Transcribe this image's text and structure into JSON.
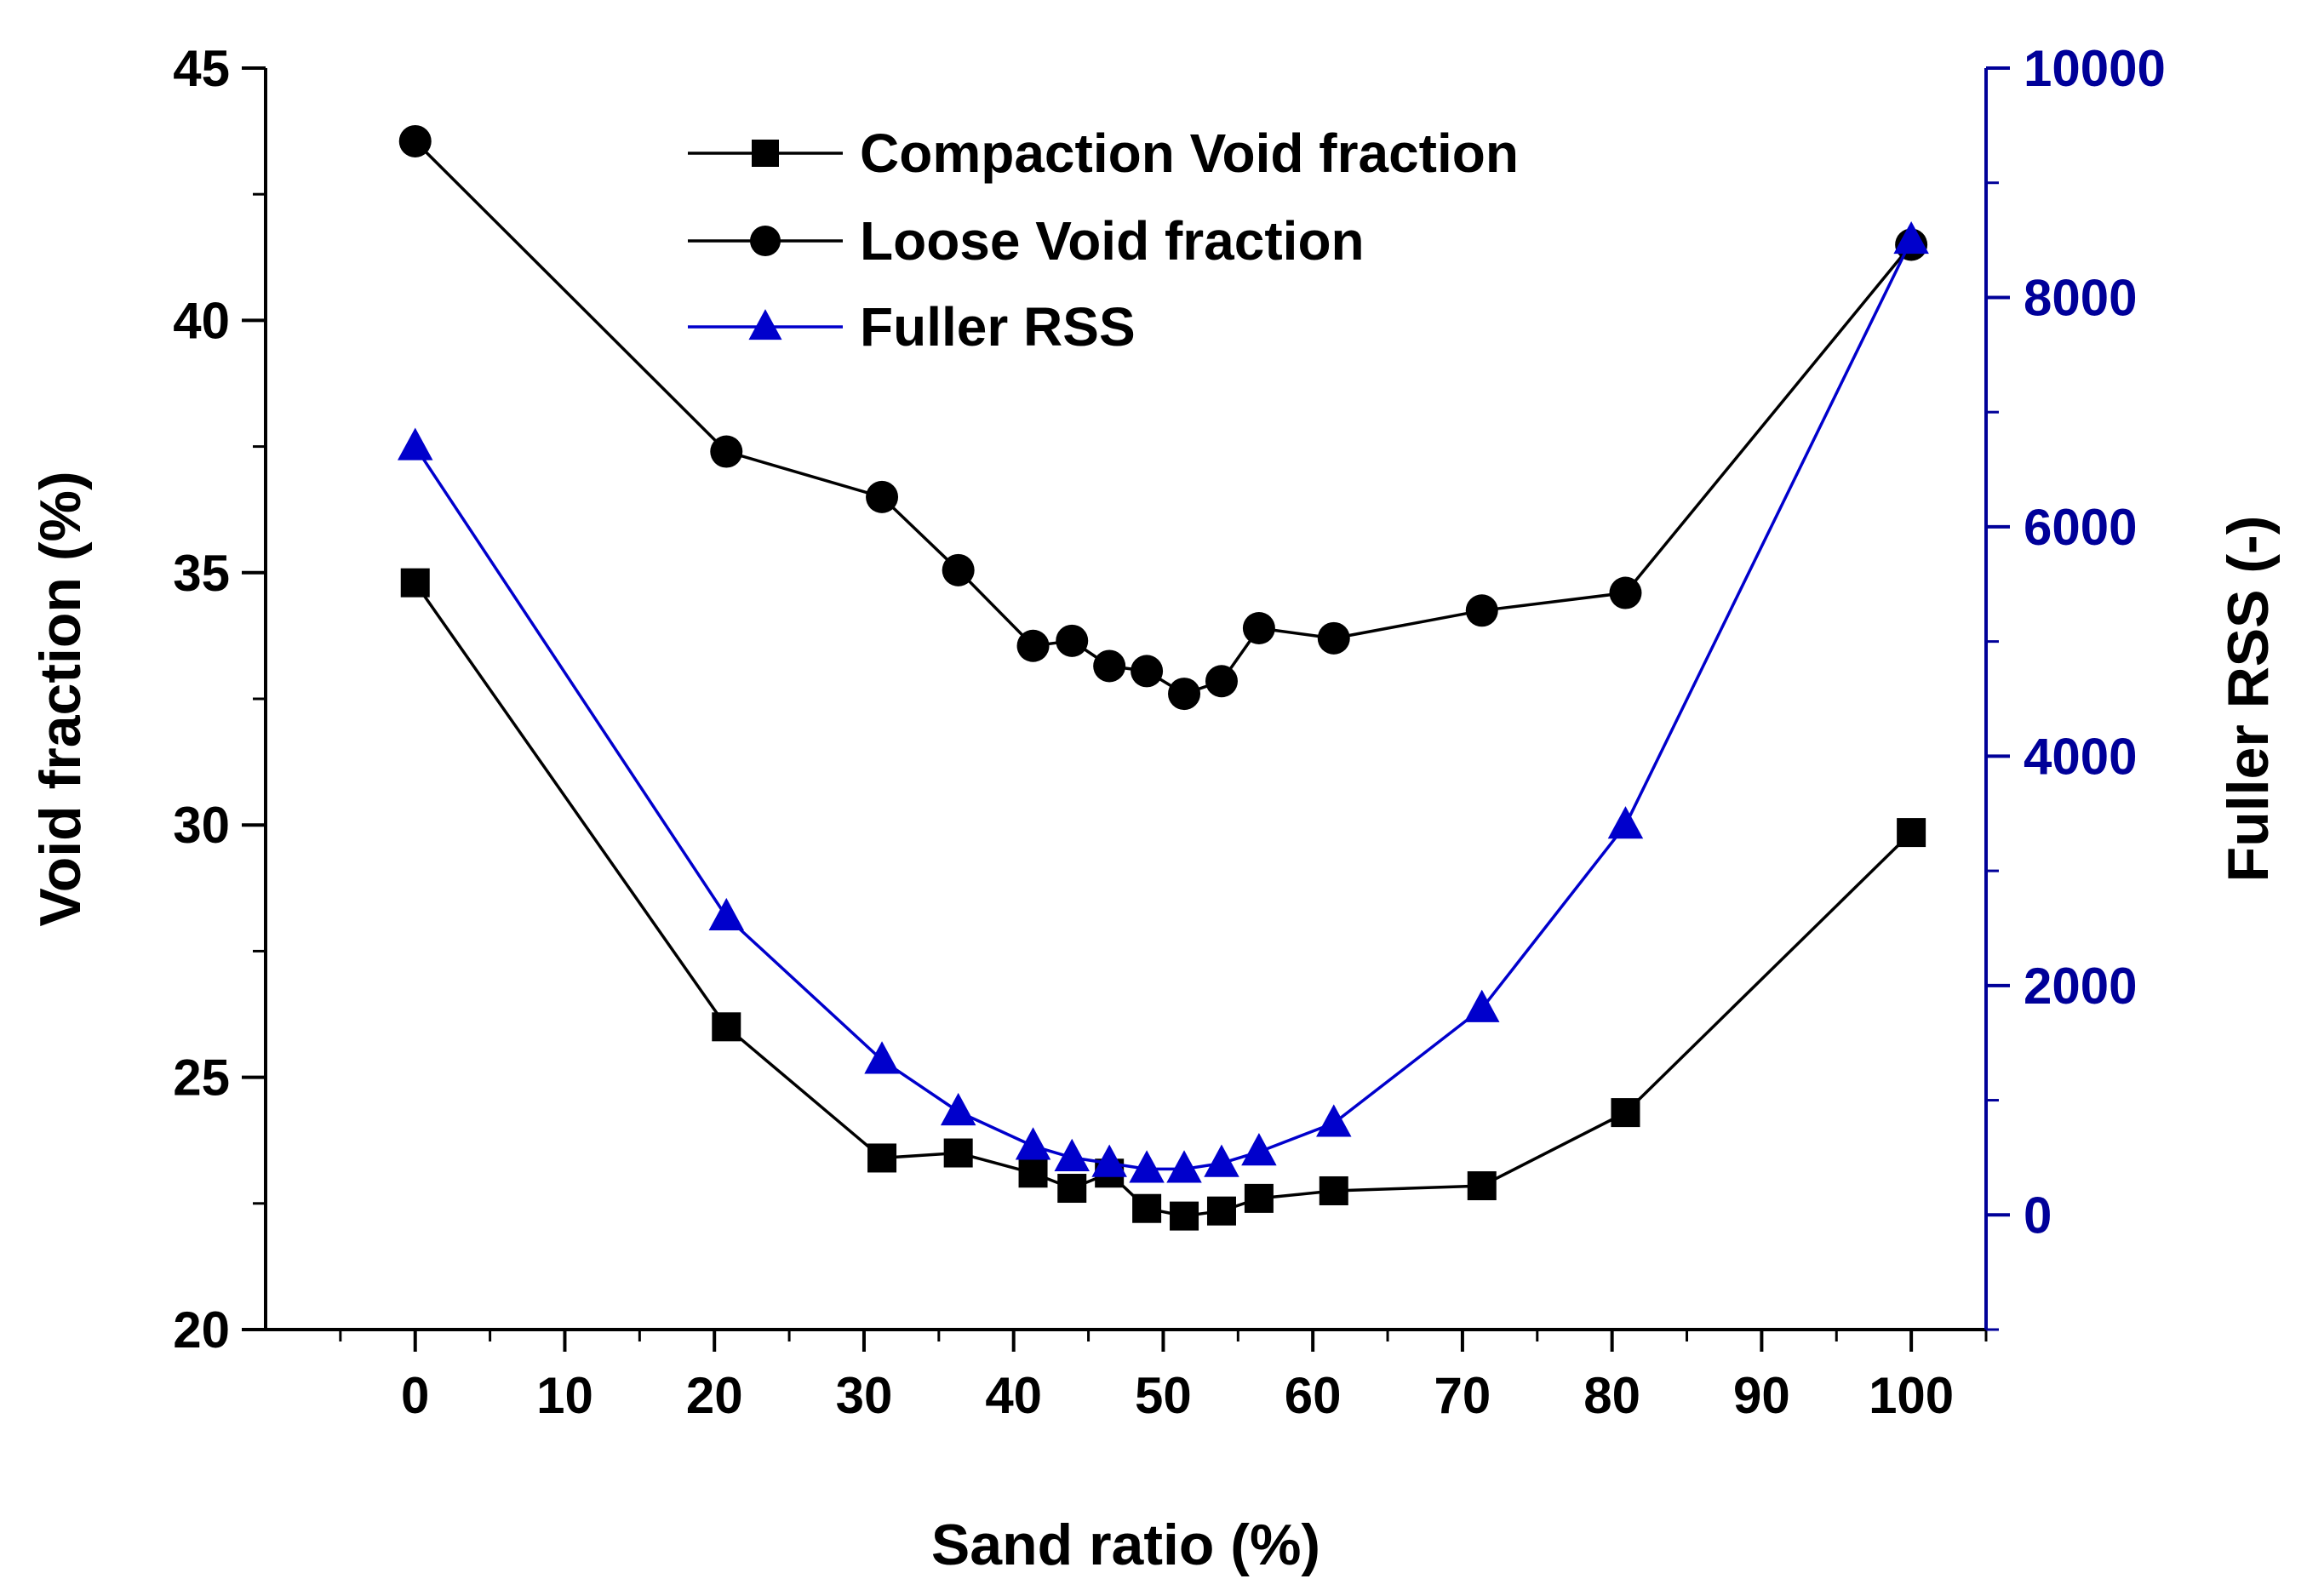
{
  "chart_data": {
    "type": "line",
    "title": "",
    "xlabel": "Sand ratio (%)",
    "ylabel": "Void fraction (%)",
    "y2label": "Fuller RSS (-)",
    "xlim": [
      -10,
      105
    ],
    "ylim": [
      20,
      45
    ],
    "y2lim": [
      -1000,
      10000
    ],
    "x_ticks": [
      0,
      10,
      20,
      30,
      40,
      50,
      60,
      70,
      80,
      90,
      100
    ],
    "y_ticks": [
      20,
      25,
      30,
      35,
      40,
      45
    ],
    "y2_ticks": [
      0,
      2000,
      4000,
      6000,
      8000,
      10000
    ],
    "legend_position": "top-center",
    "colors": {
      "black": "#000000",
      "blue": "#0000cc",
      "axis_right": "#000099"
    },
    "series": [
      {
        "name": "Compaction Void fraction",
        "axis": "left",
        "marker": "square",
        "color": "#000000",
        "x": [
          0,
          20.8,
          31.2,
          36.3,
          41.3,
          43.9,
          46.4,
          48.9,
          51.4,
          53.9,
          56.4,
          61.4,
          71.3,
          80.9,
          100
        ],
        "y": [
          34.8,
          26.0,
          23.4,
          23.5,
          23.1,
          22.8,
          23.1,
          22.4,
          22.25,
          22.35,
          22.6,
          22.75,
          22.85,
          24.3,
          29.85
        ]
      },
      {
        "name": "Loose Void fraction",
        "axis": "left",
        "marker": "circle",
        "color": "#000000",
        "x": [
          0,
          20.8,
          31.2,
          36.3,
          41.3,
          43.9,
          46.4,
          48.9,
          51.4,
          53.9,
          56.4,
          61.4,
          71.3,
          80.9,
          100
        ],
        "y": [
          43.55,
          37.4,
          36.5,
          35.05,
          33.55,
          33.65,
          33.15,
          33.05,
          32.6,
          32.85,
          33.9,
          33.7,
          34.25,
          34.6,
          41.5
        ]
      },
      {
        "name": "Fuller RSS",
        "axis": "right",
        "marker": "triangle",
        "color": "#0000cc",
        "x": [
          0,
          20.8,
          31.2,
          36.3,
          41.3,
          43.9,
          46.4,
          48.9,
          51.4,
          53.9,
          56.4,
          61.4,
          71.3,
          80.9,
          100
        ],
        "y": [
          6700,
          2600,
          1350,
          900,
          600,
          500,
          450,
          400,
          400,
          450,
          550,
          800,
          1800,
          3400,
          8500
        ]
      }
    ]
  }
}
